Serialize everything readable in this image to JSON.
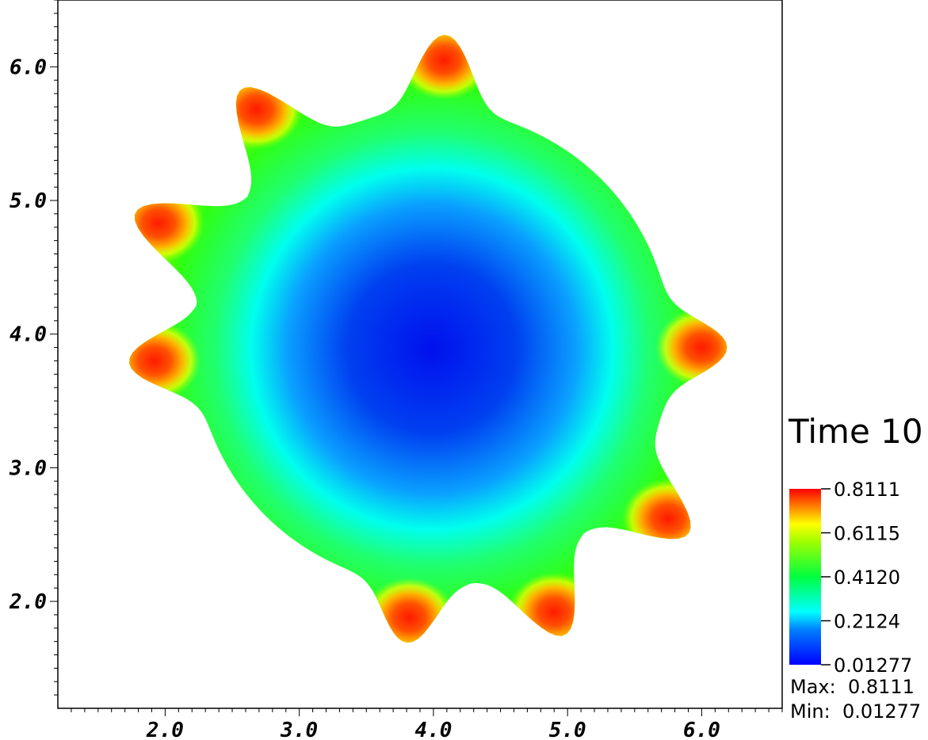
{
  "chart_data": {
    "type": "heatmap",
    "title": "Time 10",
    "xlabel": "",
    "ylabel": "",
    "xlim": [
      1.2,
      6.6
    ],
    "ylim": [
      1.2,
      6.5
    ],
    "x_ticks": [
      {
        "value": 2.0,
        "label": "2.0"
      },
      {
        "value": 3.0,
        "label": "3.0"
      },
      {
        "value": 4.0,
        "label": "4.0"
      },
      {
        "value": 5.0,
        "label": "5.0"
      },
      {
        "value": 6.0,
        "label": "6.0"
      }
    ],
    "y_ticks": [
      {
        "value": 2.0,
        "label": "2.0"
      },
      {
        "value": 3.0,
        "label": "3.0"
      },
      {
        "value": 4.0,
        "label": "4.0"
      },
      {
        "value": 5.0,
        "label": "5.0"
      },
      {
        "value": 6.0,
        "label": "6.0"
      }
    ],
    "field_center": [
      4.0,
      3.9
    ],
    "hot_spots": [
      {
        "x": 4.08,
        "y": 6.05
      },
      {
        "x": 2.68,
        "y": 5.68
      },
      {
        "x": 1.95,
        "y": 4.83
      },
      {
        "x": 1.92,
        "y": 3.8
      },
      {
        "x": 6.0,
        "y": 3.9
      },
      {
        "x": 5.75,
        "y": 2.62
      },
      {
        "x": 4.9,
        "y": 1.92
      },
      {
        "x": 3.82,
        "y": 1.88
      }
    ],
    "colorbar": {
      "colormap": "jet",
      "max": 0.8111,
      "min": 0.01277,
      "tick_labels": [
        "0.8111",
        "0.6115",
        "0.4120",
        "0.2124",
        "0.01277"
      ]
    },
    "stats": {
      "max_label": "Max:",
      "max_value": "0.8111",
      "min_label": "Min:",
      "min_value": "0.01277"
    },
    "grid": false,
    "legend_position": "right"
  }
}
